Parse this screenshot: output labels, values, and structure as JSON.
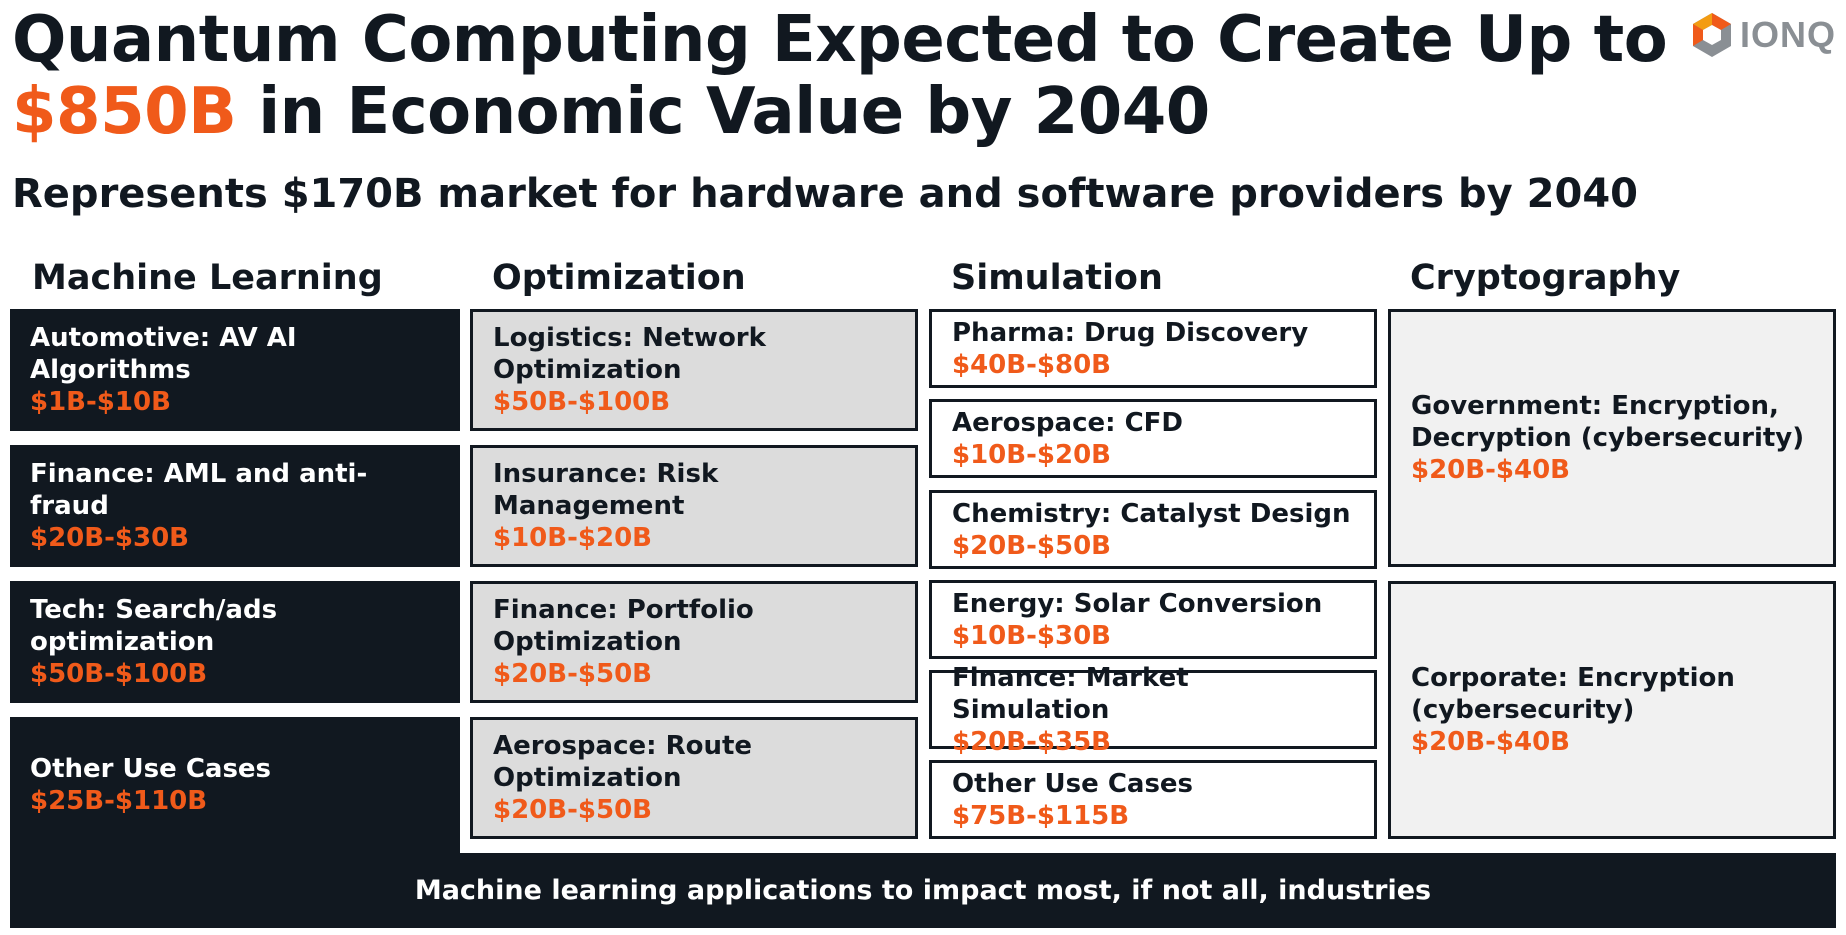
{
  "title": {
    "line1": "Quantum Computing Expected to Create Up to",
    "highlight": "$850B",
    "line2_rest": " in Economic Value by 2040"
  },
  "subtitle": "Represents $170B market for hardware and software providers by 2040",
  "logo": {
    "text": "IONQ",
    "icon": "ionq-hexagon-logo",
    "colors": [
      "#f05a1a",
      "#f39c12",
      "#8a8f94"
    ]
  },
  "colors": {
    "accent": "#f05a1a",
    "dark": "#111820",
    "gray_box": "#dcdcdc",
    "light_box": "#f1f1f1"
  },
  "columns": [
    {
      "header": "Machine Learning",
      "items": [
        {
          "label": "Automotive: AV AI Algorithms",
          "value": "$1B-$10B"
        },
        {
          "label": "Finance: AML and anti-fraud",
          "value": "$20B-$30B"
        },
        {
          "label": "Tech: Search/ads optimization",
          "value": "$50B-$100B"
        },
        {
          "label": "Other Use Cases",
          "value": "$25B-$110B"
        }
      ]
    },
    {
      "header": "Optimization",
      "items": [
        {
          "label": "Logistics: Network Optimization",
          "value": "$50B-$100B"
        },
        {
          "label": "Insurance: Risk Management",
          "value": "$10B-$20B"
        },
        {
          "label": "Finance: Portfolio Optimization",
          "value": "$20B-$50B"
        },
        {
          "label": "Aerospace: Route Optimization",
          "value": "$20B-$50B"
        }
      ]
    },
    {
      "header": "Simulation",
      "items": [
        {
          "label": "Pharma: Drug Discovery",
          "value": "$40B-$80B"
        },
        {
          "label": "Aerospace: CFD",
          "value": "$10B-$20B"
        },
        {
          "label": "Chemistry: Catalyst Design",
          "value": "$20B-$50B"
        },
        {
          "label": "Energy: Solar Conversion",
          "value": "$10B-$30B"
        },
        {
          "label": "Finance: Market Simulation",
          "value": "$20B-$35B"
        },
        {
          "label": "Other Use Cases",
          "value": "$75B-$115B"
        }
      ]
    },
    {
      "header": "Cryptography",
      "items": [
        {
          "label_lines": [
            "Government: Encryption,",
            "Decryption (cybersecurity)"
          ],
          "value": "$20B-$40B"
        },
        {
          "label_lines": [
            "Corporate: Encryption",
            "(cybersecurity)"
          ],
          "value": "$20B-$40B"
        }
      ]
    }
  ],
  "footer": "Machine learning applications to impact most, if not all, industries"
}
